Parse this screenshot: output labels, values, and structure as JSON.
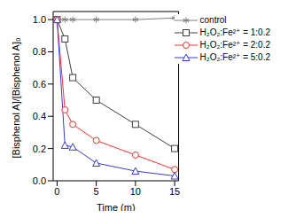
{
  "chart_data": {
    "type": "line",
    "x_label": "Time (m)",
    "y_label": "[Bisphenol A]/[Bisphenol A]₀",
    "x": [
      0,
      1,
      2,
      5,
      10,
      15
    ],
    "xlim": [
      -0.5,
      15.5
    ],
    "xticks": [
      0,
      5,
      10,
      15
    ],
    "ylim": [
      0,
      1.05
    ],
    "yticks": [
      {
        "value": 0,
        "label": "0.0"
      },
      0.2,
      0.4,
      0.6,
      0.8,
      {
        "value": 1,
        "label": "1.0"
      }
    ],
    "grid": false,
    "legend": "upper right",
    "series": [
      {
        "name": "control",
        "color": "#808080",
        "marker": "star",
        "values": [
          1.0,
          1.0,
          1.0,
          1.0,
          1.0,
          1.01
        ]
      },
      {
        "name": "H₂O₂:Fe²⁺ = 1:0.2",
        "color": "#404040",
        "marker": "square",
        "values": [
          1.0,
          0.88,
          0.64,
          0.5,
          0.35,
          0.2
        ]
      },
      {
        "name": "H₂O₂:Fe²⁺ = 2:0.2",
        "color": "#ff3030",
        "marker": "circle",
        "values": [
          1.0,
          0.44,
          0.35,
          0.25,
          0.16,
          0.07
        ]
      },
      {
        "name": "H₂O₂:Fe²⁺ = 5:0.2",
        "color": "#3a3ad0",
        "marker": "triangle",
        "values": [
          1.0,
          0.22,
          0.21,
          0.11,
          0.06,
          0.03
        ]
      }
    ]
  }
}
